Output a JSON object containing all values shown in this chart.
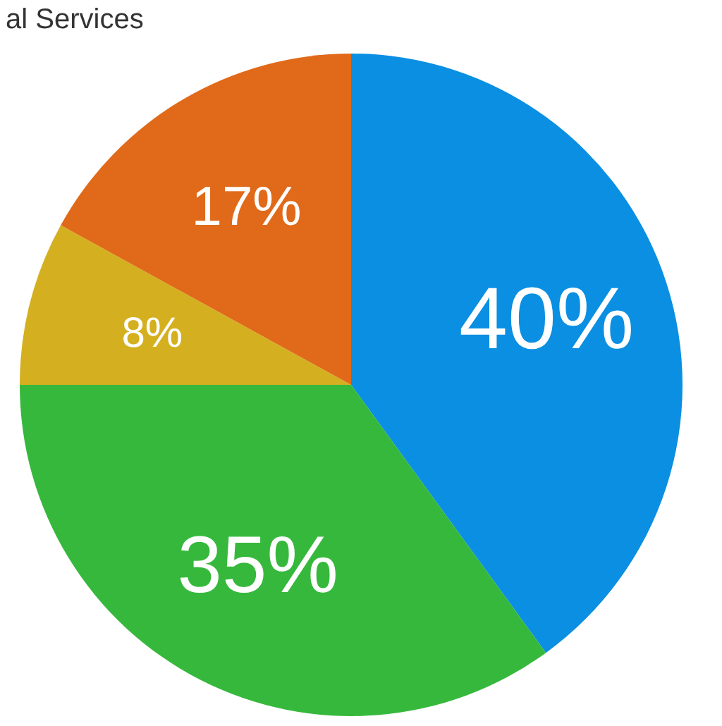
{
  "chart_data": {
    "type": "pie",
    "title": "al Services",
    "categories": [
      null,
      null,
      null,
      null
    ],
    "values": [
      40,
      35,
      8,
      17
    ],
    "colors": [
      "#0a8fe2",
      "#36b83c",
      "#d4b020",
      "#e06a1a"
    ],
    "value_labels": [
      "40%",
      "35%",
      "8%",
      "17%"
    ],
    "legend": false
  }
}
